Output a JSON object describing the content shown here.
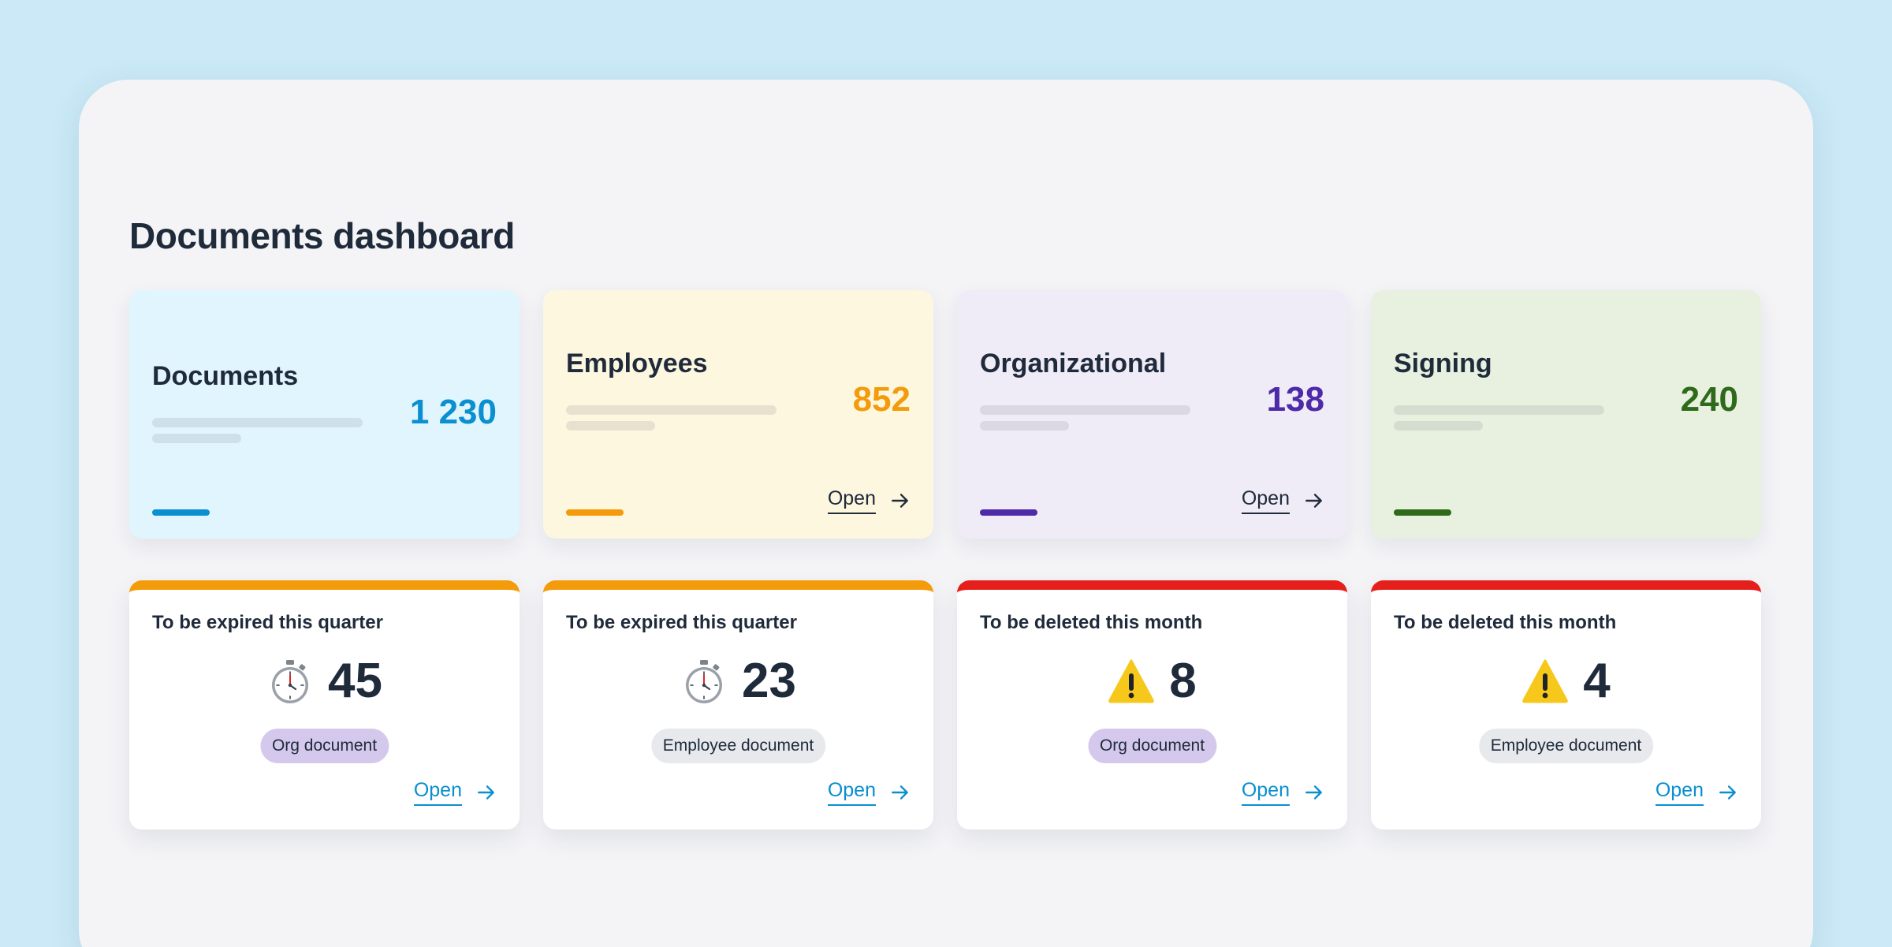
{
  "page": {
    "title": "Documents dashboard"
  },
  "stats": [
    {
      "title": "Documents",
      "value": "1 230",
      "accent": "#0a8fd0",
      "bg": "#e1f5fe",
      "open": ""
    },
    {
      "title": "Employees",
      "value": "852",
      "accent": "#f49b0b",
      "bg": "#fdf7df",
      "open": "Open"
    },
    {
      "title": "Organizational",
      "value": "138",
      "accent": "#4e2aa8",
      "bg": "#efebf7",
      "open": "Open"
    },
    {
      "title": "Signing",
      "value": "240",
      "accent": "#2f6a1a",
      "bg": "#e8f1e0",
      "open": ""
    }
  ],
  "alerts": [
    {
      "title": "To be expired this quarter",
      "count": "45",
      "icon": "stopwatch-icon",
      "tag": "Org document",
      "tag_bg": "#d4c9ec",
      "top_color": "#f49b0b",
      "open": "Open"
    },
    {
      "title": "To be expired this quarter",
      "count": "23",
      "icon": "stopwatch-icon",
      "tag": "Employee document",
      "tag_bg": "#e7e9ed",
      "top_color": "#f49b0b",
      "open": "Open"
    },
    {
      "title": "To be deleted this month",
      "count": "8",
      "icon": "warning-icon",
      "tag": "Org document",
      "tag_bg": "#d4c9ec",
      "top_color": "#e5201c",
      "open": "Open"
    },
    {
      "title": "To be deleted this month",
      "count": "4",
      "icon": "warning-icon",
      "tag": "Employee document",
      "tag_bg": "#e7e9ed",
      "top_color": "#e5201c",
      "open": "Open"
    }
  ],
  "colors": {
    "backdrop": "#cbe9f6",
    "frame": "#f4f4f7",
    "link": "#0a8fd0",
    "text": "#1f2a3a"
  }
}
